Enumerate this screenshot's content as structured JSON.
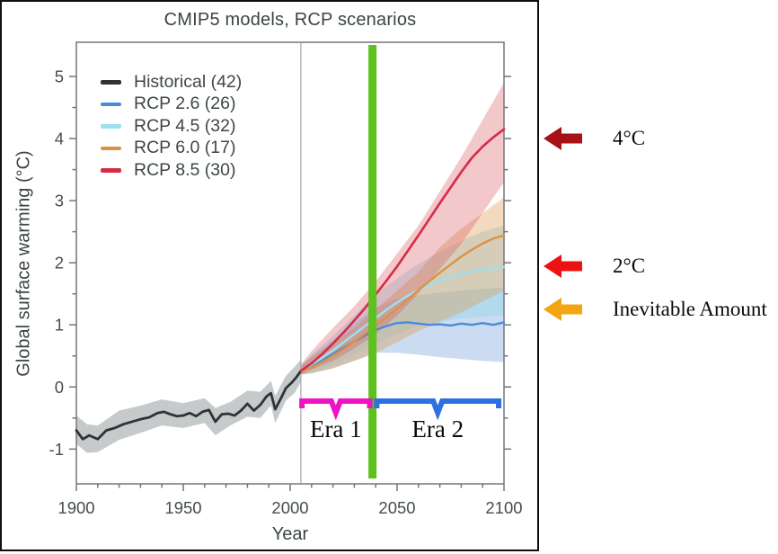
{
  "figure": {
    "title": "CMIP5 models, RCP scenarios",
    "xlabel": "Year",
    "ylabel": "Global surface warming (°C)"
  },
  "chart_data": {
    "type": "line",
    "title": "CMIP5 models, RCP scenarios",
    "xlabel": "Year",
    "ylabel": "Global surface warming (°C)",
    "xlim": [
      1900,
      2100
    ],
    "ylim": [
      -1.56,
      5.55
    ],
    "xticks": [
      1900,
      1950,
      2000,
      2050,
      2100
    ],
    "yticks": [
      5,
      4,
      3,
      2,
      1,
      0,
      -1
    ],
    "x_minor_step": 10,
    "y_minor_step": 0.5,
    "grid": false,
    "legend_position": "top-left",
    "frame_color": "#70777a",
    "series": [
      {
        "name": "Historical (42)",
        "color": "#2e3336",
        "line_width": 2.8,
        "band_color": "rgba(105,115,117,0.38)",
        "x": [
          1900,
          1903,
          1906,
          1910,
          1914,
          1918,
          1922,
          1926,
          1930,
          1934,
          1938,
          1941,
          1944,
          1947,
          1950,
          1953,
          1956,
          1959,
          1962,
          1965,
          1968,
          1971,
          1974,
          1977,
          1980,
          1983,
          1986,
          1989,
          1991,
          1993,
          1996,
          1998,
          2001,
          2003,
          2005
        ],
        "y": [
          -0.7,
          -0.84,
          -0.78,
          -0.84,
          -0.7,
          -0.66,
          -0.6,
          -0.56,
          -0.52,
          -0.49,
          -0.42,
          -0.4,
          -0.44,
          -0.47,
          -0.46,
          -0.42,
          -0.47,
          -0.4,
          -0.37,
          -0.56,
          -0.44,
          -0.43,
          -0.46,
          -0.38,
          -0.27,
          -0.38,
          -0.29,
          -0.15,
          -0.1,
          -0.36,
          -0.16,
          -0.02,
          0.08,
          0.16,
          0.26
        ],
        "band": {
          "x": [
            1900,
            1905,
            1910,
            1920,
            1930,
            1940,
            1950,
            1960,
            1965,
            1972,
            1980,
            1986,
            1991,
            1993,
            1998,
            2002,
            2005
          ],
          "lo": [
            -0.92,
            -1.06,
            -1.05,
            -0.85,
            -0.74,
            -0.62,
            -0.66,
            -0.58,
            -0.78,
            -0.62,
            -0.48,
            -0.5,
            -0.3,
            -0.58,
            -0.22,
            -0.1,
            0.08
          ],
          "hi": [
            -0.46,
            -0.6,
            -0.62,
            -0.38,
            -0.3,
            -0.2,
            -0.26,
            -0.18,
            -0.34,
            -0.24,
            -0.06,
            -0.08,
            0.1,
            -0.14,
            0.18,
            0.32,
            0.44
          ]
        }
      },
      {
        "name": "RCP 2.6 (26)",
        "color": "#4a8bd4",
        "line_width": 2.4,
        "band_color": "rgba(96,145,214,0.33)",
        "x": [
          2005,
          2010,
          2015,
          2020,
          2025,
          2030,
          2035,
          2040,
          2045,
          2050,
          2055,
          2060,
          2065,
          2070,
          2075,
          2080,
          2085,
          2090,
          2095,
          2100
        ],
        "y": [
          0.26,
          0.34,
          0.43,
          0.53,
          0.63,
          0.73,
          0.83,
          0.92,
          0.98,
          1.03,
          1.04,
          1.02,
          1.0,
          1.01,
          0.99,
          1.02,
          1.0,
          1.03,
          1.0,
          1.04
        ],
        "band": {
          "x": [
            2005,
            2010,
            2020,
            2030,
            2040,
            2050,
            2060,
            2070,
            2080,
            2090,
            2100
          ],
          "lo": [
            0.2,
            0.22,
            0.3,
            0.42,
            0.55,
            0.55,
            0.52,
            0.48,
            0.45,
            0.42,
            0.4
          ],
          "hi": [
            0.34,
            0.5,
            0.75,
            1.02,
            1.28,
            1.42,
            1.48,
            1.52,
            1.55,
            1.58,
            1.6
          ]
        }
      },
      {
        "name": "RCP 4.5 (32)",
        "color": "#9fdff0",
        "line_width": 2.4,
        "band_color": "rgba(150,216,236,0.45)",
        "x": [
          2005,
          2010,
          2015,
          2020,
          2025,
          2030,
          2035,
          2040,
          2045,
          2050,
          2055,
          2060,
          2065,
          2070,
          2075,
          2080,
          2085,
          2090,
          2095,
          2100
        ],
        "y": [
          0.26,
          0.36,
          0.47,
          0.59,
          0.72,
          0.85,
          0.98,
          1.11,
          1.24,
          1.36,
          1.47,
          1.56,
          1.64,
          1.71,
          1.77,
          1.82,
          1.86,
          1.89,
          1.91,
          1.93
        ],
        "band": {
          "x": [
            2005,
            2010,
            2020,
            2030,
            2040,
            2050,
            2060,
            2070,
            2080,
            2090,
            2100
          ],
          "lo": [
            0.2,
            0.24,
            0.35,
            0.52,
            0.7,
            0.85,
            1.0,
            1.05,
            1.1,
            1.13,
            1.15
          ],
          "hi": [
            0.34,
            0.52,
            0.82,
            1.15,
            1.5,
            1.75,
            1.98,
            2.18,
            2.35,
            2.5,
            2.6
          ]
        }
      },
      {
        "name": "RCP 6.0 (17)",
        "color": "#dc9246",
        "line_width": 2.4,
        "band_color": "rgba(222,150,72,0.36)",
        "x": [
          2005,
          2010,
          2015,
          2020,
          2025,
          2030,
          2035,
          2040,
          2045,
          2050,
          2055,
          2060,
          2065,
          2070,
          2075,
          2080,
          2085,
          2090,
          2095,
          2100
        ],
        "y": [
          0.26,
          0.31,
          0.4,
          0.5,
          0.61,
          0.73,
          0.86,
          0.99,
          1.12,
          1.26,
          1.41,
          1.56,
          1.7,
          1.84,
          1.97,
          2.1,
          2.21,
          2.31,
          2.39,
          2.44
        ],
        "band": {
          "x": [
            2005,
            2010,
            2020,
            2030,
            2040,
            2050,
            2060,
            2070,
            2080,
            2090,
            2100
          ],
          "lo": [
            0.2,
            0.22,
            0.3,
            0.42,
            0.55,
            0.72,
            0.9,
            1.05,
            1.2,
            1.38,
            1.55
          ],
          "hi": [
            0.34,
            0.48,
            0.7,
            0.95,
            1.25,
            1.55,
            1.85,
            2.25,
            2.55,
            2.8,
            3.05
          ]
        }
      },
      {
        "name": "RCP 8.5 (30)",
        "color": "#d62b49",
        "line_width": 2.6,
        "band_color": "rgba(218,85,92,0.32)",
        "x": [
          2005,
          2010,
          2015,
          2020,
          2025,
          2030,
          2035,
          2040,
          2045,
          2050,
          2055,
          2060,
          2065,
          2070,
          2075,
          2080,
          2085,
          2090,
          2095,
          2100
        ],
        "y": [
          0.26,
          0.38,
          0.53,
          0.7,
          0.88,
          1.07,
          1.27,
          1.49,
          1.71,
          1.94,
          2.19,
          2.44,
          2.7,
          2.96,
          3.21,
          3.46,
          3.69,
          3.87,
          4.02,
          4.15
        ],
        "band": {
          "x": [
            2005,
            2010,
            2020,
            2030,
            2040,
            2050,
            2060,
            2070,
            2080,
            2090,
            2100
          ],
          "lo": [
            0.2,
            0.28,
            0.42,
            0.62,
            0.85,
            1.15,
            1.5,
            1.9,
            2.3,
            2.8,
            3.3
          ],
          "hi": [
            0.36,
            0.58,
            0.95,
            1.3,
            1.7,
            2.15,
            2.6,
            3.15,
            3.7,
            4.3,
            4.9
          ]
        }
      }
    ],
    "markers": {
      "divider_year": 2005,
      "divider_color": "#a3a8aa",
      "green_line": {
        "year": 2038.5,
        "color": "#5ec11d"
      },
      "era_brackets": [
        {
          "label": "Era 1",
          "from": 2005.5,
          "to": 2037.2,
          "color": "#ee13c5"
        },
        {
          "label": "Era 2",
          "from": 2040.5,
          "to": 2097.5,
          "color": "#2d70e0"
        }
      ],
      "arrows": [
        {
          "label": "4°C",
          "color": "#a61215",
          "at_value": 4.0
        },
        {
          "label": "2°C",
          "color": "#ee1111",
          "at_value": 1.95
        },
        {
          "label": "Inevitable Amount",
          "color": "#f4a513",
          "at_value": 1.25
        }
      ]
    }
  }
}
